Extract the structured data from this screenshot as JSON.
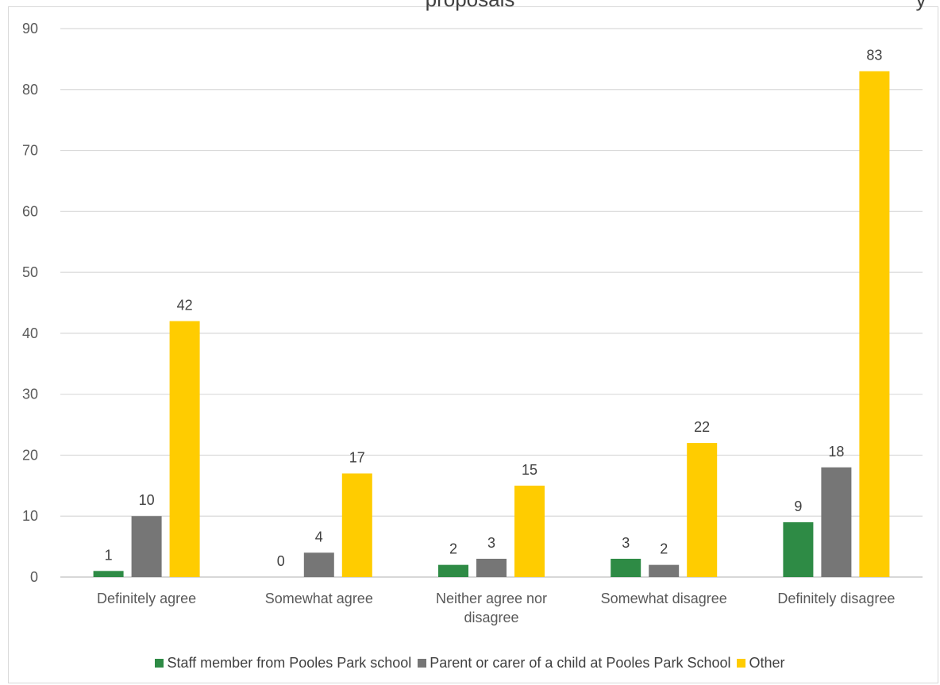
{
  "chart_data": {
    "type": "bar",
    "title_fragment": "proposals",
    "title_right_fragment": "y",
    "categories": [
      [
        "Definitely agree"
      ],
      [
        "Somewhat agree"
      ],
      [
        "Neither agree nor",
        "disagree"
      ],
      [
        "Somewhat disagree"
      ],
      [
        "Definitely disagree"
      ]
    ],
    "series": [
      {
        "name": "Staff member from Pooles Park school",
        "color": "#2e8b45",
        "values": [
          1,
          0,
          2,
          3,
          9
        ]
      },
      {
        "name": "Parent or carer of a child at Pooles Park School",
        "color": "#767676",
        "values": [
          10,
          4,
          3,
          2,
          18
        ]
      },
      {
        "name": "Other",
        "color": "#ffcc00",
        "values": [
          42,
          17,
          15,
          22,
          83
        ]
      }
    ],
    "ylim": [
      0,
      90
    ],
    "yticks": [
      "0",
      "10",
      "20",
      "30",
      "40",
      "50",
      "60",
      "70",
      "80",
      "90"
    ],
    "grid": true,
    "legend_position": "bottom"
  }
}
